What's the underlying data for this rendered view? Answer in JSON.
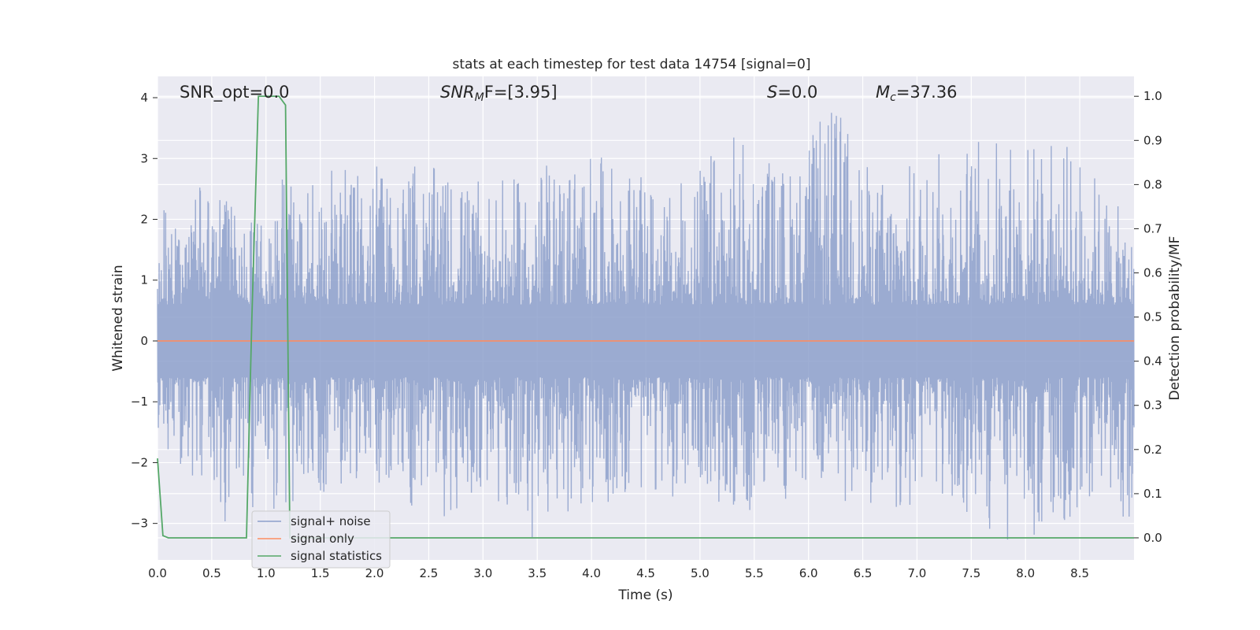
{
  "chart_data": {
    "type": "line",
    "title": "stats at each timestep for test data 14754 [signal=0]",
    "xlabel": "Time (s)",
    "ylabel": "Whitened strain",
    "ylabel_right": "Detection probability/MF",
    "xlim": [
      0.0,
      9.0
    ],
    "ylim": [
      -3.6,
      4.35
    ],
    "ylim_right": [
      -0.05,
      1.045
    ],
    "xticks": [
      "0.0",
      "0.5",
      "1.0",
      "1.5",
      "2.0",
      "2.5",
      "3.0",
      "3.5",
      "4.0",
      "4.5",
      "5.0",
      "5.5",
      "6.0",
      "6.5",
      "7.0",
      "7.5",
      "8.0",
      "8.5"
    ],
    "yticks": [
      "4",
      "3",
      "2",
      "1",
      "0",
      "−1",
      "−2",
      "−3"
    ],
    "yticks_right": [
      "1.0",
      "0.9",
      "0.8",
      "0.7",
      "0.6",
      "0.5",
      "0.4",
      "0.3",
      "0.2",
      "0.1",
      "0.0"
    ],
    "grid": true,
    "legend_position": "lower-left",
    "annotations": {
      "snr_opt": "SNR_opt=0.0",
      "snr_mf_main": "SNR",
      "snr_mf_sub": "M",
      "snr_mf_rest": "F=[3.95]",
      "s_main": "S",
      "s_rest": "=0.0",
      "mc_main": "M",
      "mc_sub": "c",
      "mc_rest": "=37.36"
    },
    "series": [
      {
        "name": "signal+ noise",
        "axis": "left",
        "color": "#8da0cb",
        "description_values": {
          "band_low": -1.0,
          "band_high": 1.0,
          "envelope_top": [
            [
              0.0,
              2.1
            ],
            [
              0.25,
              2.7
            ],
            [
              0.5,
              2.4
            ],
            [
              0.9,
              2.2
            ],
            [
              1.25,
              3.2
            ],
            [
              1.75,
              2.8
            ],
            [
              1.98,
              2.9
            ],
            [
              2.3,
              3.0
            ],
            [
              3.0,
              2.6
            ],
            [
              3.4,
              2.7
            ],
            [
              3.8,
              3.2
            ],
            [
              4.3,
              2.9
            ],
            [
              4.7,
              2.4
            ],
            [
              5.3,
              3.5
            ],
            [
              5.4,
              3.3
            ],
            [
              5.5,
              3.3
            ],
            [
              5.8,
              2.9
            ],
            [
              6.25,
              4.0
            ],
            [
              6.6,
              2.7
            ],
            [
              7.4,
              3.3
            ],
            [
              7.9,
              3.5
            ],
            [
              8.5,
              3.2
            ],
            [
              9.0,
              1.8
            ]
          ],
          "envelope_bottom": [
            [
              0.0,
              -1.9
            ],
            [
              0.5,
              -2.6
            ],
            [
              0.6,
              -3.1
            ],
            [
              1.25,
              -2.7
            ],
            [
              1.78,
              -2.3
            ],
            [
              2.45,
              -2.8
            ],
            [
              2.68,
              -3.0
            ],
            [
              3.05,
              -2.5
            ],
            [
              3.35,
              -3.3
            ],
            [
              3.67,
              -3.35
            ],
            [
              3.9,
              -2.8
            ],
            [
              4.5,
              -2.5
            ],
            [
              5.4,
              -2.9
            ],
            [
              5.6,
              -2.7
            ],
            [
              6.0,
              -2.6
            ],
            [
              6.6,
              -2.8
            ],
            [
              7.2,
              -2.8
            ],
            [
              7.6,
              -3.3
            ],
            [
              8.3,
              -3.3
            ],
            [
              8.6,
              -2.6
            ],
            [
              9.0,
              -3.2
            ]
          ]
        }
      },
      {
        "name": "signal only",
        "axis": "left",
        "color": "#fc8d62",
        "x": [
          0.0,
          9.0
        ],
        "y": [
          0.0,
          0.0
        ]
      },
      {
        "name": "signal statistics",
        "axis": "right",
        "color": "#55a868",
        "x": [
          0.0,
          0.05,
          0.1,
          0.82,
          0.87,
          0.93,
          0.97,
          1.12,
          1.18,
          1.22,
          1.26,
          1.3,
          9.0
        ],
        "y": [
          0.18,
          0.005,
          0.0,
          0.0,
          0.5,
          1.0,
          1.0,
          1.0,
          0.98,
          0.0,
          0.0,
          0.0,
          0.0
        ]
      }
    ],
    "colors": {
      "background": "#eaeaf2",
      "grid": "#ffffff",
      "legend_border": "#cccccc"
    }
  }
}
